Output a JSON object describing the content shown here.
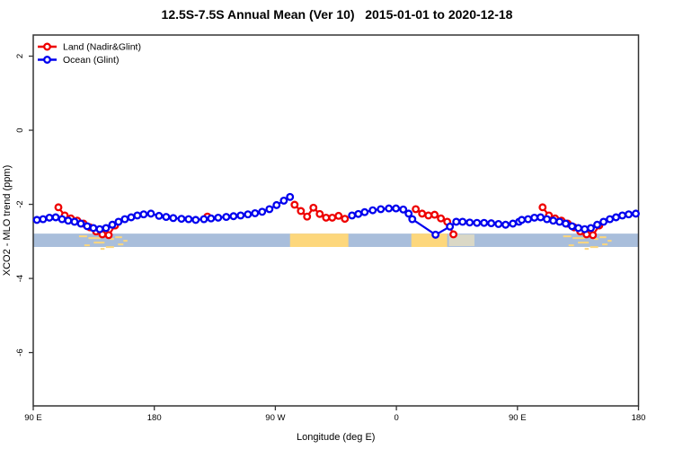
{
  "title": "12.5S-7.5S Annual Mean (Ver 10)   2015-01-01 to 2020-12-18",
  "colors": {
    "land": "#ee0000",
    "ocean": "#0000ee",
    "strip_ocean": "#a9bedb",
    "strip_land": "#fdd77c",
    "strip_pale_patch": "#e6dfc0",
    "axis": "#333333",
    "text": "#000000"
  },
  "legend": {
    "items": [
      {
        "label": "Land (Nadir&Glint)",
        "color": "#ee0000"
      },
      {
        "label": "Ocean (Glint)",
        "color": "#0000ee"
      }
    ]
  },
  "chart_data": {
    "type": "line",
    "title": "12.5S-7.5S Annual Mean (Ver 10)   2015-01-01 to 2020-12-18",
    "xlabel": "Longitude (deg E)",
    "ylabel": "XCO2 - MLO trend (ppm)",
    "grid": false,
    "legend_position": "top-left-inside",
    "x_axis": {
      "range": [
        90,
        540
      ],
      "note_units": "degrees east, wrapping past 180/360",
      "ticks": [
        90,
        180,
        270,
        360,
        450,
        540
      ],
      "tick_labels": [
        "90 E",
        "180",
        "90 W",
        "0",
        "90 E",
        "180"
      ]
    },
    "y_axis": {
      "range": [
        -7.44,
        2.57
      ],
      "ticks": [
        2,
        0,
        -2,
        -4,
        -6
      ],
      "tick_labels": [
        "2",
        "0",
        "-2",
        "-4",
        "-6"
      ]
    },
    "series": [
      {
        "name": "Ocean (Glint)",
        "color": "#0000ee",
        "marker": "open-circle",
        "segments": [
          [
            [
              92.7,
              -2.42
            ],
            [
              97.3,
              -2.4
            ],
            [
              102.0,
              -2.36
            ],
            [
              106.7,
              -2.35
            ],
            [
              111.4,
              -2.4
            ],
            [
              116.0,
              -2.44
            ],
            [
              120.7,
              -2.47
            ],
            [
              125.4,
              -2.52
            ],
            [
              130.1,
              -2.59
            ],
            [
              134.7,
              -2.64
            ],
            [
              139.4,
              -2.67
            ],
            [
              144.1,
              -2.64
            ],
            [
              148.8,
              -2.55
            ],
            [
              153.4,
              -2.47
            ],
            [
              158.1,
              -2.4
            ],
            [
              162.8,
              -2.35
            ],
            [
              167.4,
              -2.3
            ],
            [
              172.1,
              -2.27
            ],
            [
              177.5,
              -2.25
            ],
            [
              183.5,
              -2.31
            ],
            [
              188.8,
              -2.34
            ],
            [
              194.1,
              -2.37
            ],
            [
              200.2,
              -2.39
            ],
            [
              205.5,
              -2.4
            ],
            [
              210.8,
              -2.42
            ],
            [
              216.9,
              -2.4
            ],
            [
              222.2,
              -2.38
            ],
            [
              227.5,
              -2.36
            ],
            [
              233.5,
              -2.34
            ],
            [
              238.9,
              -2.32
            ],
            [
              244.2,
              -2.3
            ],
            [
              249.6,
              -2.27
            ],
            [
              254.9,
              -2.24
            ],
            [
              260.2,
              -2.2
            ],
            [
              265.6,
              -2.13
            ],
            [
              270.9,
              -2.02
            ],
            [
              276.3,
              -1.9
            ],
            [
              280.9,
              -1.8
            ]
          ],
          [
            [
              327.0,
              -2.3
            ],
            [
              331.7,
              -2.26
            ],
            [
              336.4,
              -2.21
            ],
            [
              342.4,
              -2.16
            ],
            [
              348.4,
              -2.13
            ],
            [
              354.4,
              -2.11
            ],
            [
              359.7,
              -2.11
            ],
            [
              365.1,
              -2.14
            ],
            [
              369.1,
              -2.25
            ],
            [
              371.8,
              -2.4
            ],
            [
              389.1,
              -2.82
            ],
            [
              399.8,
              -2.6
            ],
            [
              404.5,
              -2.47
            ],
            [
              409.2,
              -2.47
            ],
            [
              414.5,
              -2.49
            ],
            [
              419.9,
              -2.5
            ],
            [
              425.2,
              -2.5
            ],
            [
              430.5,
              -2.51
            ],
            [
              435.9,
              -2.53
            ],
            [
              441.2,
              -2.55
            ],
            [
              446.6,
              -2.52
            ],
            [
              451.2,
              -2.47
            ],
            [
              453.2,
              -2.42
            ],
            [
              457.9,
              -2.4
            ],
            [
              462.6,
              -2.36
            ],
            [
              467.2,
              -2.35
            ],
            [
              471.9,
              -2.4
            ],
            [
              476.6,
              -2.44
            ],
            [
              481.3,
              -2.47
            ],
            [
              485.9,
              -2.52
            ],
            [
              490.6,
              -2.59
            ],
            [
              495.3,
              -2.64
            ],
            [
              500.0,
              -2.67
            ],
            [
              504.6,
              -2.64
            ],
            [
              509.3,
              -2.55
            ],
            [
              514.0,
              -2.47
            ],
            [
              518.7,
              -2.4
            ],
            [
              523.3,
              -2.35
            ],
            [
              528.0,
              -2.3
            ],
            [
              532.7,
              -2.27
            ],
            [
              538.0,
              -2.25
            ]
          ]
        ]
      },
      {
        "name": "Land (Nadir&Glint)",
        "color": "#ee0000",
        "marker": "open-circle",
        "segments": [
          [
            [
              108.7,
              -2.08
            ],
            [
              113.4,
              -2.3
            ],
            [
              118.0,
              -2.38
            ],
            [
              122.7,
              -2.44
            ],
            [
              127.4,
              -2.52
            ],
            [
              132.1,
              -2.62
            ],
            [
              136.7,
              -2.73
            ],
            [
              141.4,
              -2.81
            ],
            [
              146.1,
              -2.83
            ],
            [
              150.8,
              -2.57
            ]
          ],
          [
            [
              219.5,
              -2.33
            ]
          ],
          [
            [
              284.3,
              -2.01
            ],
            [
              289.0,
              -2.18
            ],
            [
              293.6,
              -2.33
            ],
            [
              298.3,
              -2.09
            ],
            [
              303.0,
              -2.26
            ],
            [
              307.7,
              -2.36
            ],
            [
              312.3,
              -2.36
            ],
            [
              317.0,
              -2.31
            ],
            [
              321.7,
              -2.39
            ]
          ],
          [
            [
              374.4,
              -2.13
            ],
            [
              379.1,
              -2.25
            ],
            [
              383.8,
              -2.3
            ],
            [
              388.4,
              -2.28
            ],
            [
              393.1,
              -2.38
            ],
            [
              397.8,
              -2.47
            ],
            [
              402.4,
              -2.81
            ]
          ],
          [
            [
              468.7,
              -2.08
            ],
            [
              473.4,
              -2.3
            ],
            [
              478.0,
              -2.38
            ],
            [
              482.7,
              -2.44
            ],
            [
              487.4,
              -2.52
            ],
            [
              492.1,
              -2.62
            ],
            [
              496.7,
              -2.73
            ],
            [
              501.4,
              -2.81
            ],
            [
              506.1,
              -2.83
            ],
            [
              510.8,
              -2.57
            ]
          ]
        ]
      }
    ],
    "land_ocean_strip": {
      "top_ppm": -2.79,
      "bottom_ppm": -3.15,
      "ocean_color": "#a9bedb",
      "land_color": "#fdd77c",
      "land_spans_deg": [
        [
          280.9,
          324.3
        ],
        [
          371.1,
          397.8
        ]
      ],
      "pale_patch": {
        "span_deg": [
          399.0,
          418.0
        ],
        "color": "#e6dfc0",
        "opacity": 0.8
      },
      "island_flecks": [
        [
          124,
          6,
          2,
          2
        ],
        [
          131,
          9,
          4,
          2
        ],
        [
          142,
          5,
          2,
          2
        ],
        [
          147,
          3,
          5,
          2
        ],
        [
          151,
          5,
          3,
          2
        ],
        [
          157,
          3,
          7,
          2
        ],
        [
          135,
          8,
          9,
          2
        ],
        [
          128,
          4,
          12,
          2
        ],
        [
          144,
          6,
          14,
          2
        ],
        [
          153,
          4,
          11,
          2
        ],
        [
          140,
          3,
          16,
          2
        ],
        [
          484,
          6,
          2,
          2
        ],
        [
          491,
          9,
          4,
          2
        ],
        [
          502,
          5,
          2,
          2
        ],
        [
          507,
          3,
          5,
          2
        ],
        [
          511,
          5,
          3,
          2
        ],
        [
          517,
          3,
          7,
          2
        ],
        [
          495,
          8,
          9,
          2
        ],
        [
          488,
          4,
          12,
          2
        ],
        [
          504,
          6,
          14,
          2
        ],
        [
          513,
          4,
          11,
          2
        ],
        [
          500,
          3,
          16,
          2
        ]
      ]
    }
  }
}
